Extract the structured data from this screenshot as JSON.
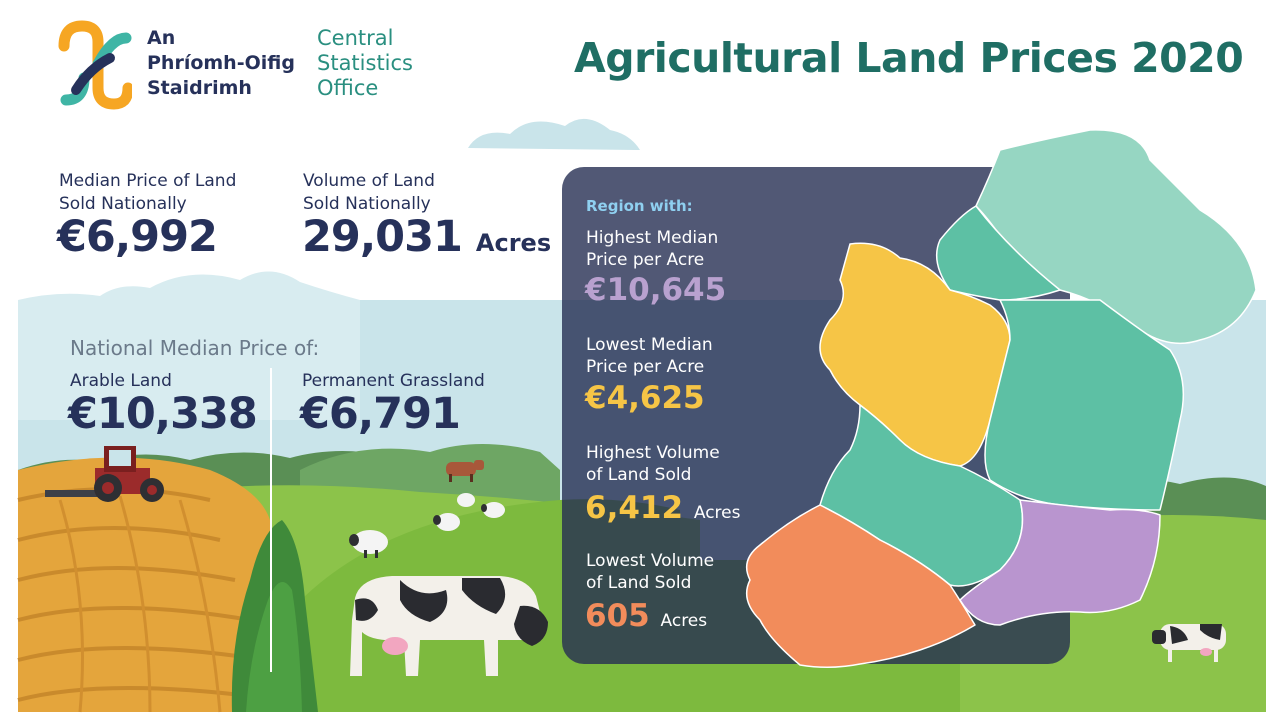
{
  "logo": {
    "irish_line1": "An",
    "irish_line2": "Phríomh-Oifig",
    "irish_line3": "Staidrimh",
    "english_line1": "Central",
    "english_line2": "Statistics",
    "english_line3": "Office"
  },
  "title": "Agricultural Land Prices 2020",
  "national": {
    "median_price_label_line1": "Median Price of Land",
    "median_price_label_line2": "Sold Nationally",
    "median_price_value": "€6,992",
    "volume_label_line1": "Volume of Land",
    "volume_label_line2": "Sold Nationally",
    "volume_value": "29,031",
    "volume_unit": "Acres"
  },
  "land_type": {
    "heading": "National Median Price of:",
    "arable_label": "Arable Land",
    "arable_value": "€10,338",
    "grassland_label": "Permanent Grassland",
    "grassland_value": "€6,791"
  },
  "regions": {
    "heading": "Region with:",
    "highest_price_label_line1": "Highest Median",
    "highest_price_label_line2": "Price per Acre",
    "highest_price_value": "€10,645",
    "lowest_price_label_line1": "Lowest Median",
    "lowest_price_label_line2": "Price per Acre",
    "lowest_price_value": "€4,625",
    "highest_volume_label_line1": "Highest Volume",
    "highest_volume_label_line2": "of Land Sold",
    "highest_volume_value": "6,412",
    "highest_volume_unit": "Acres",
    "lowest_volume_label_line1": "Lowest Volume",
    "lowest_volume_label_line2": "of Land Sold",
    "lowest_volume_value": "605",
    "lowest_volume_unit": "Acres"
  },
  "colors": {
    "title": "#1f6e64",
    "text_dark": "#26315a",
    "highest_price": "#b9a1cf",
    "lowest_price": "#f6c546",
    "highest_volume": "#f6c546",
    "lowest_volume": "#f28c5b",
    "region_default": "#5dc0a4",
    "region_north": "#96d6c2",
    "region_west": "#f6c546",
    "region_southwest": "#f28c5b",
    "region_southeast": "#b995cf"
  }
}
